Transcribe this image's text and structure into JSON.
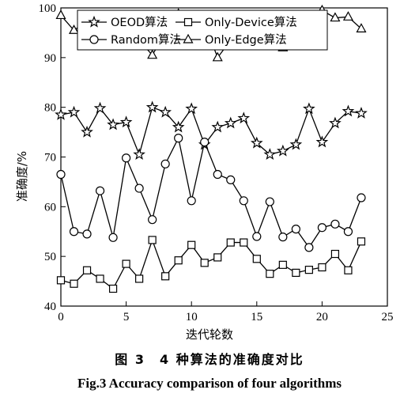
{
  "chart_data": {
    "type": "line",
    "xlabel": "迭代轮数",
    "ylabel": "准确度/%",
    "xlim": [
      0,
      25
    ],
    "ylim": [
      40,
      100
    ],
    "xticks": [
      0,
      5,
      10,
      15,
      20,
      25
    ],
    "yticks": [
      40,
      50,
      60,
      70,
      80,
      90,
      100
    ],
    "grid": false,
    "legend": "top",
    "x": [
      0,
      1,
      2,
      3,
      4,
      5,
      6,
      7,
      8,
      9,
      10,
      11,
      12,
      13,
      14,
      15,
      16,
      17,
      18,
      19,
      20,
      21,
      22,
      23
    ],
    "series": [
      {
        "name": "OEOD算法",
        "marker": "star",
        "values": [
          78.5,
          79,
          75,
          79.8,
          76.5,
          77,
          70.5,
          80,
          79,
          76,
          79.7,
          72.5,
          76,
          76.8,
          77.8,
          72.8,
          70.5,
          71.2,
          72.5,
          79.7,
          73,
          76.8,
          79.2,
          78.8
        ]
      },
      {
        "name": "Random算法",
        "marker": "circle",
        "values": [
          66.5,
          55,
          54.5,
          63.2,
          53.8,
          69.8,
          63.7,
          57.4,
          68.6,
          73.8,
          61.2,
          73,
          66.5,
          65.4,
          61.2,
          54,
          61,
          53.9,
          55.5,
          51.8,
          55.8,
          56.5,
          55,
          61.8
        ]
      },
      {
        "name": "Only-Device算法",
        "marker": "square",
        "values": [
          45.2,
          44.5,
          47.2,
          45.5,
          43.5,
          48.5,
          45.5,
          53.3,
          46,
          49.2,
          52.3,
          48.7,
          49.8,
          52.8,
          52.8,
          49.5,
          46.5,
          48.3,
          46.7,
          47.3,
          47.8,
          50.5,
          47.2,
          53
        ]
      },
      {
        "name": "Only-Edge算法",
        "marker": "triangle",
        "values": [
          98.5,
          95.5,
          97.3,
          95,
          92.5,
          94,
          93.5,
          90.5,
          95,
          98.8,
          95.5,
          97,
          90,
          93.5,
          95.8,
          94.5,
          94.3,
          92,
          94,
          96.5,
          99.5,
          98,
          98.2,
          95.8
        ]
      }
    ]
  },
  "caption": {
    "cn": "图 3　4 种算法的准确度对比",
    "en": "Fig.3    Accuracy comparison of four algorithms"
  }
}
